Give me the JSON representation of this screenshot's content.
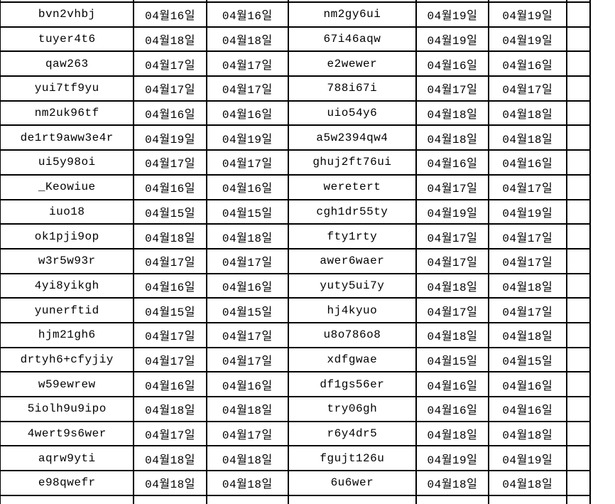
{
  "table": {
    "row_count": 20,
    "column_roles": [
      "id",
      "date",
      "date",
      "id",
      "date",
      "date"
    ],
    "rows": [
      [
        "bvn2vhbj",
        "04월16일",
        "04월16일",
        "nm2gy6ui",
        "04월19일",
        "04월19일"
      ],
      [
        "tuyer4t6",
        "04월18일",
        "04월18일",
        "67i46aqw",
        "04월19일",
        "04월19일"
      ],
      [
        "qaw263",
        "04월17일",
        "04월17일",
        "e2wewer",
        "04월16일",
        "04월16일"
      ],
      [
        "yui7tf9yu",
        "04월17일",
        "04월17일",
        "788i67i",
        "04월17일",
        "04월17일"
      ],
      [
        "nm2uk96tf",
        "04월16일",
        "04월16일",
        "uio54y6",
        "04월18일",
        "04월18일"
      ],
      [
        "de1rt9aww3e4r",
        "04월19일",
        "04월19일",
        "a5w2394qw4",
        "04월18일",
        "04월18일"
      ],
      [
        "ui5y98oi",
        "04월17일",
        "04월17일",
        "ghuj2ft76ui",
        "04월16일",
        "04월16일"
      ],
      [
        "_Keowiue",
        "04월16일",
        "04월16일",
        "weretert",
        "04월17일",
        "04월17일"
      ],
      [
        "iuo18",
        "04월15일",
        "04월15일",
        "cgh1dr55ty",
        "04월19일",
        "04월19일"
      ],
      [
        "ok1pji9op",
        "04월18일",
        "04월18일",
        "fty1rty",
        "04월17일",
        "04월17일"
      ],
      [
        "w3r5w93r",
        "04월17일",
        "04월17일",
        "awer6waer",
        "04월17일",
        "04월17일"
      ],
      [
        "4yi8yikgh",
        "04월16일",
        "04월16일",
        "yuty5ui7y",
        "04월18일",
        "04월18일"
      ],
      [
        "yunerftid",
        "04월15일",
        "04월15일",
        "hj4kyuo",
        "04월17일",
        "04월17일"
      ],
      [
        "hjm21gh6",
        "04월17일",
        "04월17일",
        "u8o786o8",
        "04월18일",
        "04월18일"
      ],
      [
        "drtyh6+cfyjiy",
        "04월17일",
        "04월17일",
        "xdfgwae",
        "04월15일",
        "04월15일"
      ],
      [
        "w59ewrew",
        "04월16일",
        "04월16일",
        "df1gs56er",
        "04월16일",
        "04월16일"
      ],
      [
        "5iolh9u9ipo",
        "04월18일",
        "04월18일",
        "try06gh",
        "04월16일",
        "04월16일"
      ],
      [
        "4wert9s6wer",
        "04월17일",
        "04월17일",
        "r6y4dr5",
        "04월18일",
        "04월18일"
      ],
      [
        "aqrw9yti",
        "04월18일",
        "04월18일",
        "fgujt126u",
        "04월19일",
        "04월19일"
      ],
      [
        "e98qwefr",
        "04월18일",
        "04월18일",
        "6u6wer",
        "04월18일",
        "04월18일"
      ]
    ]
  },
  "colors": {
    "background": "#ffffff",
    "grid_border": "#000000",
    "text": "#000000"
  }
}
